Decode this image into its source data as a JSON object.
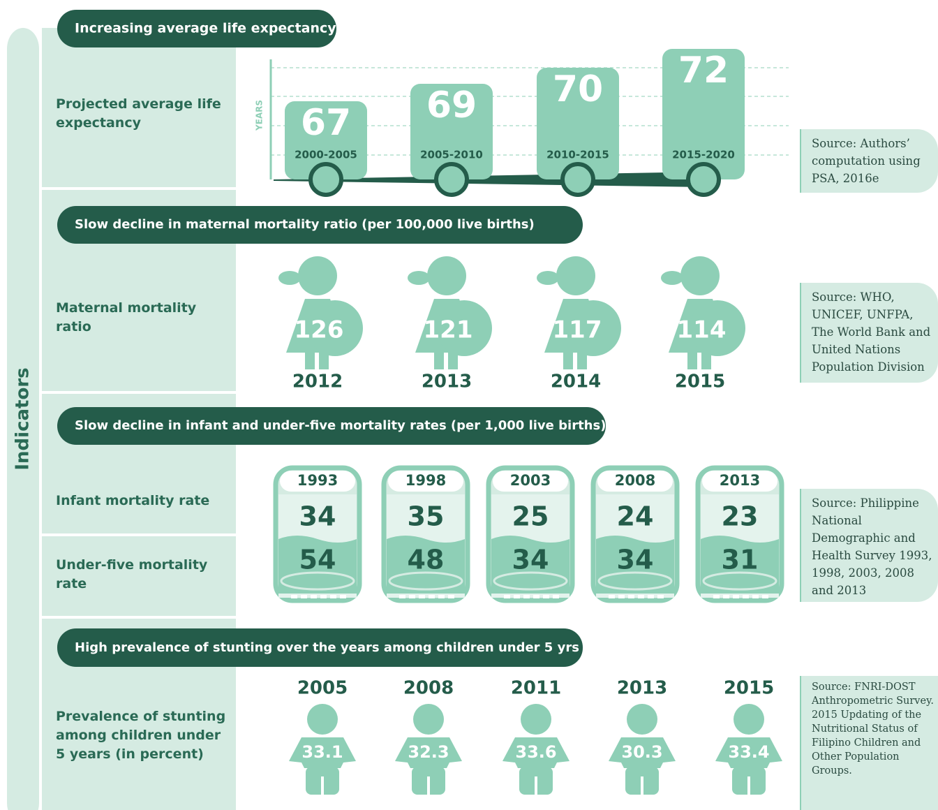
{
  "sidebar_label": "Indicators",
  "sections": [
    {
      "title": "Increasing average life expectancy",
      "indicator": "Projected average life expectancy",
      "axis_label": "YEARS",
      "items": [
        {
          "period": "2000-2005",
          "value": 67
        },
        {
          "period": "2005-2010",
          "value": 69
        },
        {
          "period": "2010-2015",
          "value": 70
        },
        {
          "period": "2015-2020",
          "value": 72
        }
      ],
      "source": "Source: Authors’ computation using PSA, 2016e"
    },
    {
      "title": "Slow decline in maternal mortality ratio (per 100,000 live births)",
      "indicator": "Maternal mortality ratio",
      "items": [
        {
          "year": "2012",
          "value": 126
        },
        {
          "year": "2013",
          "value": 121
        },
        {
          "year": "2014",
          "value": 117
        },
        {
          "year": "2015",
          "value": 114
        }
      ],
      "source": "Source: WHO, UNICEF, UNFPA, The World Bank and United Nations Population Division"
    },
    {
      "title": "Slow decline in infant and under-five mortality rates (per 1,000 live births)",
      "indicators": [
        "Infant mortality rate",
        "Under-five mortality rate"
      ],
      "items": [
        {
          "year": "1993",
          "infant": 34,
          "under_five": 54
        },
        {
          "year": "1998",
          "infant": 35,
          "under_five": 48
        },
        {
          "year": "2003",
          "infant": 25,
          "under_five": 34
        },
        {
          "year": "2008",
          "infant": 24,
          "under_five": 34
        },
        {
          "year": "2013",
          "infant": 23,
          "under_five": 31
        }
      ],
      "source": "Source: Philippine National Demographic and Health Survey 1993, 1998, 2003, 2008 and 2013"
    },
    {
      "title": "High prevalence of stunting over the years among children under 5 yrs",
      "indicator": "Prevalence of stunting among children under 5 years (in percent)",
      "items": [
        {
          "year": "2005",
          "value": 33.1
        },
        {
          "year": "2008",
          "value": 32.3
        },
        {
          "year": "2011",
          "value": 33.6
        },
        {
          "year": "2013",
          "value": 30.3
        },
        {
          "year": "2015",
          "value": 33.4
        }
      ],
      "source": "Source: FNRI-DOST Anthropometric Survey. 2015 Updating of the Nutritional Status of Filipino Children and Other Population Groups."
    }
  ]
}
